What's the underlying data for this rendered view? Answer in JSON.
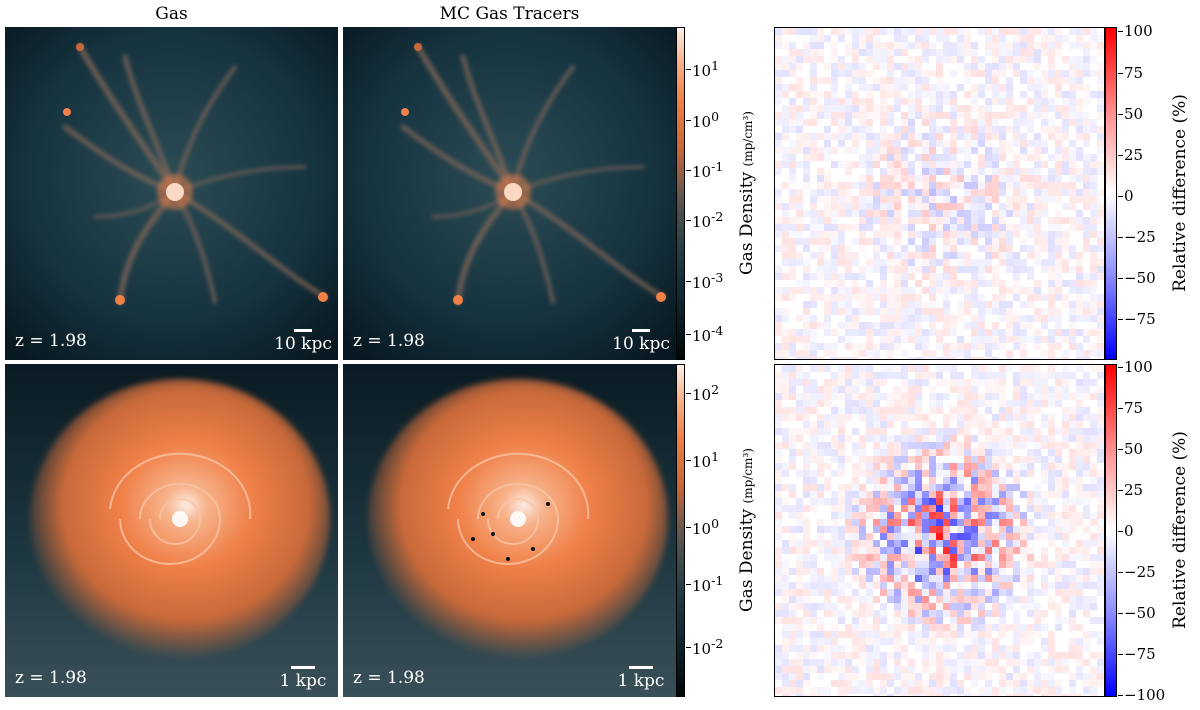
{
  "columns": {
    "gas_title": "Gas",
    "tracers_title": "MC Gas Tracers"
  },
  "row_top": {
    "redshift_label": "z = 1.98",
    "scale_label": "10 kpc",
    "density_ticks": [
      "10",
      "10",
      "10",
      "10",
      "10",
      "10"
    ],
    "density_exps": [
      "1",
      "0",
      "-1",
      "-2",
      "-3",
      "-4"
    ],
    "density_tick_values": [
      10,
      1,
      0.1,
      0.01,
      0.001,
      0.0001
    ],
    "density_label": "Gas Density",
    "density_unit": "(mp/cm³)",
    "diff_ticks": [
      "100",
      "75",
      "50",
      "25",
      "0",
      "−25",
      "−50",
      "−75"
    ],
    "diff_label": "Relative difference (%)"
  },
  "row_bottom": {
    "redshift_label": "z = 1.98",
    "scale_label": "1 kpc",
    "density_ticks": [
      "10",
      "10",
      "10",
      "10",
      "10"
    ],
    "density_exps": [
      "2",
      "1",
      "0",
      "-1",
      "-2"
    ],
    "density_tick_values": [
      100,
      10,
      1,
      0.1,
      0.01
    ],
    "density_label": "Gas Density",
    "density_unit": "(mp/cm³)",
    "diff_ticks": [
      "100",
      "75",
      "50",
      "25",
      "0",
      "−25",
      "−50",
      "−75",
      "−100"
    ],
    "diff_label": "Relative difference (%)"
  },
  "colors": {
    "density_low": "#030708",
    "density_mid": "#213d46",
    "density_high": "#f08048",
    "density_peak": "#fcefea",
    "diff_neg": "#0000ff",
    "diff_zero": "#ffffff",
    "diff_pos": "#ff0000"
  }
}
